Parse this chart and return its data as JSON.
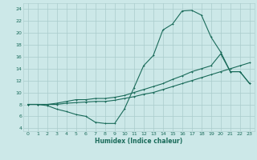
{
  "xlabel": "Humidex (Indice chaleur)",
  "xlim": [
    -0.5,
    23.5
  ],
  "ylim": [
    3.5,
    25
  ],
  "yticks": [
    4,
    6,
    8,
    10,
    12,
    14,
    16,
    18,
    20,
    22,
    24
  ],
  "xticks": [
    0,
    1,
    2,
    3,
    4,
    5,
    6,
    7,
    8,
    9,
    10,
    11,
    12,
    13,
    14,
    15,
    16,
    17,
    18,
    19,
    20,
    21,
    22,
    23
  ],
  "bg_color": "#cce8e8",
  "grid_color": "#aacccc",
  "line_color": "#1a6b5a",
  "line1_x": [
    0,
    1,
    2,
    3,
    4,
    5,
    6,
    7,
    8,
    9,
    10,
    11,
    12,
    13,
    14,
    15,
    16,
    17,
    18,
    19,
    20,
    21,
    22,
    23
  ],
  "line1_y": [
    8.0,
    8.0,
    7.8,
    7.2,
    6.8,
    6.3,
    6.0,
    5.0,
    4.8,
    4.8,
    7.2,
    10.8,
    14.5,
    16.2,
    20.5,
    21.5,
    23.7,
    23.8,
    23.0,
    19.3,
    16.8,
    13.5,
    13.5,
    11.5
  ],
  "line2_x": [
    0,
    1,
    2,
    3,
    4,
    5,
    6,
    7,
    8,
    9,
    10,
    11,
    12,
    13,
    14,
    15,
    16,
    17,
    18,
    19,
    20,
    21,
    22,
    23
  ],
  "line2_y": [
    8.0,
    8.0,
    8.0,
    8.2,
    8.5,
    8.8,
    8.8,
    9.0,
    9.0,
    9.2,
    9.5,
    10.0,
    10.5,
    11.0,
    11.5,
    12.2,
    12.8,
    13.5,
    14.0,
    14.5,
    16.5,
    13.5,
    13.5,
    11.5
  ],
  "line3_x": [
    0,
    1,
    2,
    3,
    4,
    5,
    6,
    7,
    8,
    9,
    10,
    11,
    12,
    13,
    14,
    15,
    16,
    17,
    18,
    19,
    20,
    21,
    22,
    23
  ],
  "line3_y": [
    8.0,
    8.0,
    8.0,
    8.0,
    8.2,
    8.3,
    8.4,
    8.5,
    8.5,
    8.7,
    9.0,
    9.3,
    9.7,
    10.0,
    10.5,
    11.0,
    11.5,
    12.0,
    12.5,
    13.0,
    13.5,
    14.0,
    14.5,
    15.0
  ]
}
